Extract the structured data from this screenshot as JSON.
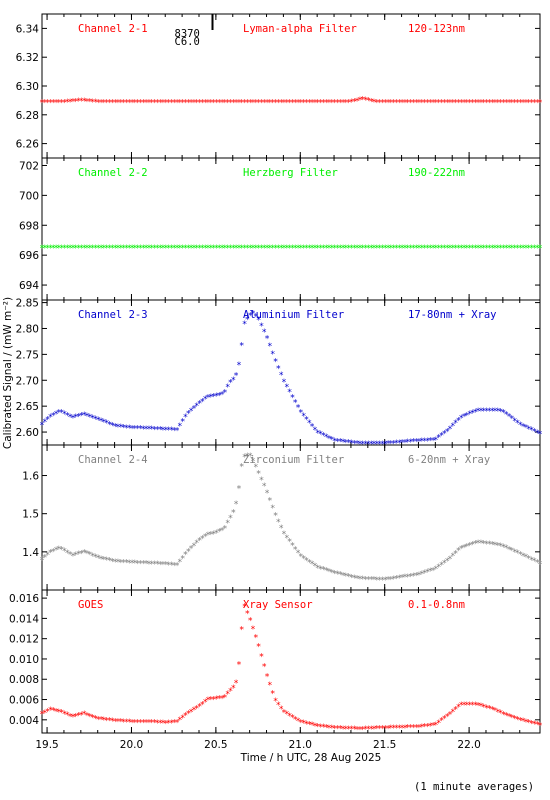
{
  "xaxis": {
    "label": "Time / h UTC, 28 Aug 2025",
    "range": [
      19.47,
      22.42
    ],
    "ticks": [
      19.5,
      20.0,
      20.5,
      21.0,
      21.5,
      22.0
    ],
    "tick_labels": [
      "19.5",
      "20.0",
      "20.5",
      "21.0",
      "21.5",
      "22.0"
    ]
  },
  "ylabel": "Calibrated Signal / (mW m⁻²)",
  "footnote": "(1 minute averages)",
  "flare_marker": {
    "time": 20.48,
    "labels": [
      "8370",
      "C6.0"
    ]
  },
  "chart_data": [
    {
      "type": "scatter",
      "channel": "Channel 2-1",
      "filter": "Lyman-alpha Filter",
      "band": "120-123nm",
      "color": "#ff0000",
      "ylim": [
        6.25,
        6.35
      ],
      "yticks": [
        6.26,
        6.28,
        6.3,
        6.32,
        6.34
      ],
      "ytick_labels": [
        "6.26",
        "6.28",
        "6.30",
        "6.32",
        "6.34"
      ],
      "series": [
        {
          "x": [
            19.47,
            19.6,
            19.7,
            19.8,
            20.0,
            20.3,
            20.6,
            20.9,
            21.2,
            21.3,
            21.37,
            21.45,
            21.6,
            21.9,
            22.2,
            22.42
          ],
          "y": [
            6.289,
            6.289,
            6.29,
            6.289,
            6.289,
            6.289,
            6.289,
            6.289,
            6.289,
            6.289,
            6.291,
            6.289,
            6.289,
            6.289,
            6.289,
            6.289
          ]
        }
      ]
    },
    {
      "type": "scatter",
      "channel": "Channel 2-2",
      "filter": "Herzberg Filter",
      "band": "190-222nm",
      "color": "#00ee00",
      "ylim": [
        693,
        702.5
      ],
      "yticks": [
        694,
        696,
        698,
        700,
        702
      ],
      "ytick_labels": [
        "694",
        "696",
        "698",
        "700",
        "702"
      ],
      "series": [
        {
          "x": [
            19.47,
            20.0,
            20.5,
            21.0,
            21.5,
            22.0,
            22.42
          ],
          "y": [
            696.5,
            696.5,
            696.5,
            696.5,
            696.5,
            696.5,
            696.5
          ]
        }
      ]
    },
    {
      "type": "scatter",
      "channel": "Channel 2-3",
      "filter": "Aluminium Filter",
      "band": "17-80nm + Xray",
      "color": "#0000cc",
      "ylim": [
        2.575,
        2.855
      ],
      "yticks": [
        2.6,
        2.65,
        2.7,
        2.75,
        2.8,
        2.85
      ],
      "ytick_labels": [
        "2.60",
        "2.65",
        "2.70",
        "2.75",
        "2.80",
        "2.85"
      ],
      "series": [
        {
          "x": [
            19.47,
            19.52,
            19.58,
            19.65,
            19.72,
            19.8,
            19.9,
            20.0,
            20.1,
            20.2,
            20.27,
            20.33,
            20.4,
            20.45,
            20.5,
            20.55,
            20.58,
            20.6,
            20.63,
            20.65,
            20.67,
            20.7,
            20.72,
            20.75,
            20.8,
            20.85,
            20.9,
            21.0,
            21.1,
            21.2,
            21.35,
            21.5,
            21.7,
            21.8,
            21.88,
            21.95,
            22.05,
            22.15,
            22.2,
            22.3,
            22.42
          ],
          "y": [
            2.615,
            2.63,
            2.64,
            2.628,
            2.634,
            2.625,
            2.612,
            2.608,
            2.607,
            2.605,
            2.604,
            2.635,
            2.655,
            2.668,
            2.67,
            2.675,
            2.695,
            2.7,
            2.715,
            2.76,
            2.81,
            2.825,
            2.83,
            2.82,
            2.785,
            2.74,
            2.7,
            2.64,
            2.6,
            2.584,
            2.578,
            2.578,
            2.583,
            2.585,
            2.605,
            2.628,
            2.642,
            2.642,
            2.64,
            2.615,
            2.597
          ]
        }
      ]
    },
    {
      "type": "scatter",
      "channel": "Channel 2-4",
      "filter": "Zirconium Filter",
      "band": "6-20nm + Xray",
      "color": "#808080",
      "ylim": [
        1.3,
        1.68
      ],
      "yticks": [
        1.4,
        1.5,
        1.6
      ],
      "ytick_labels": [
        "1.4",
        "1.5",
        "1.6"
      ],
      "series": [
        {
          "x": [
            19.47,
            19.52,
            19.58,
            19.65,
            19.72,
            19.8,
            19.9,
            20.0,
            20.1,
            20.2,
            20.27,
            20.33,
            20.4,
            20.45,
            20.5,
            20.55,
            20.58,
            20.6,
            20.63,
            20.65,
            20.67,
            20.7,
            20.72,
            20.75,
            20.8,
            20.85,
            20.9,
            21.0,
            21.1,
            21.2,
            21.35,
            21.5,
            21.7,
            21.8,
            21.88,
            21.95,
            22.05,
            22.15,
            22.2,
            22.3,
            22.42
          ],
          "y": [
            1.38,
            1.4,
            1.41,
            1.39,
            1.4,
            1.385,
            1.375,
            1.372,
            1.37,
            1.368,
            1.365,
            1.4,
            1.43,
            1.445,
            1.45,
            1.46,
            1.485,
            1.5,
            1.54,
            1.62,
            1.65,
            1.655,
            1.64,
            1.61,
            1.56,
            1.5,
            1.45,
            1.39,
            1.36,
            1.345,
            1.33,
            1.327,
            1.34,
            1.355,
            1.38,
            1.41,
            1.425,
            1.42,
            1.415,
            1.395,
            1.37
          ]
        }
      ]
    },
    {
      "type": "scatter",
      "channel": "GOES",
      "filter": "Xray Sensor",
      "band": "0.1-0.8nm",
      "color": "#ff0000",
      "ylim": [
        0.0027,
        0.0168
      ],
      "yticks": [
        0.004,
        0.006,
        0.008,
        0.01,
        0.012,
        0.014,
        0.016
      ],
      "ytick_labels": [
        "0.004",
        "0.006",
        "0.008",
        "0.010",
        "0.012",
        "0.014",
        "0.016"
      ],
      "series": [
        {
          "x": [
            19.47,
            19.52,
            19.58,
            19.65,
            19.72,
            19.8,
            19.9,
            20.0,
            20.1,
            20.2,
            20.27,
            20.33,
            20.4,
            20.45,
            20.5,
            20.55,
            20.58,
            20.6,
            20.63,
            20.65,
            20.67,
            20.7,
            20.72,
            20.75,
            20.8,
            20.85,
            20.9,
            21.0,
            21.1,
            21.2,
            21.35,
            21.5,
            21.7,
            21.8,
            21.88,
            21.95,
            22.05,
            22.15,
            22.2,
            22.3,
            22.42
          ],
          "y": [
            0.0046,
            0.005,
            0.0048,
            0.0043,
            0.0046,
            0.0041,
            0.0039,
            0.0038,
            0.0038,
            0.0037,
            0.0038,
            0.0046,
            0.0053,
            0.006,
            0.0061,
            0.0062,
            0.0068,
            0.0071,
            0.008,
            0.0125,
            0.0152,
            0.014,
            0.013,
            0.0115,
            0.0085,
            0.006,
            0.0048,
            0.0038,
            0.0034,
            0.0032,
            0.0031,
            0.0032,
            0.0033,
            0.0035,
            0.0045,
            0.0055,
            0.0055,
            0.005,
            0.0046,
            0.004,
            0.0035
          ]
        }
      ]
    }
  ]
}
